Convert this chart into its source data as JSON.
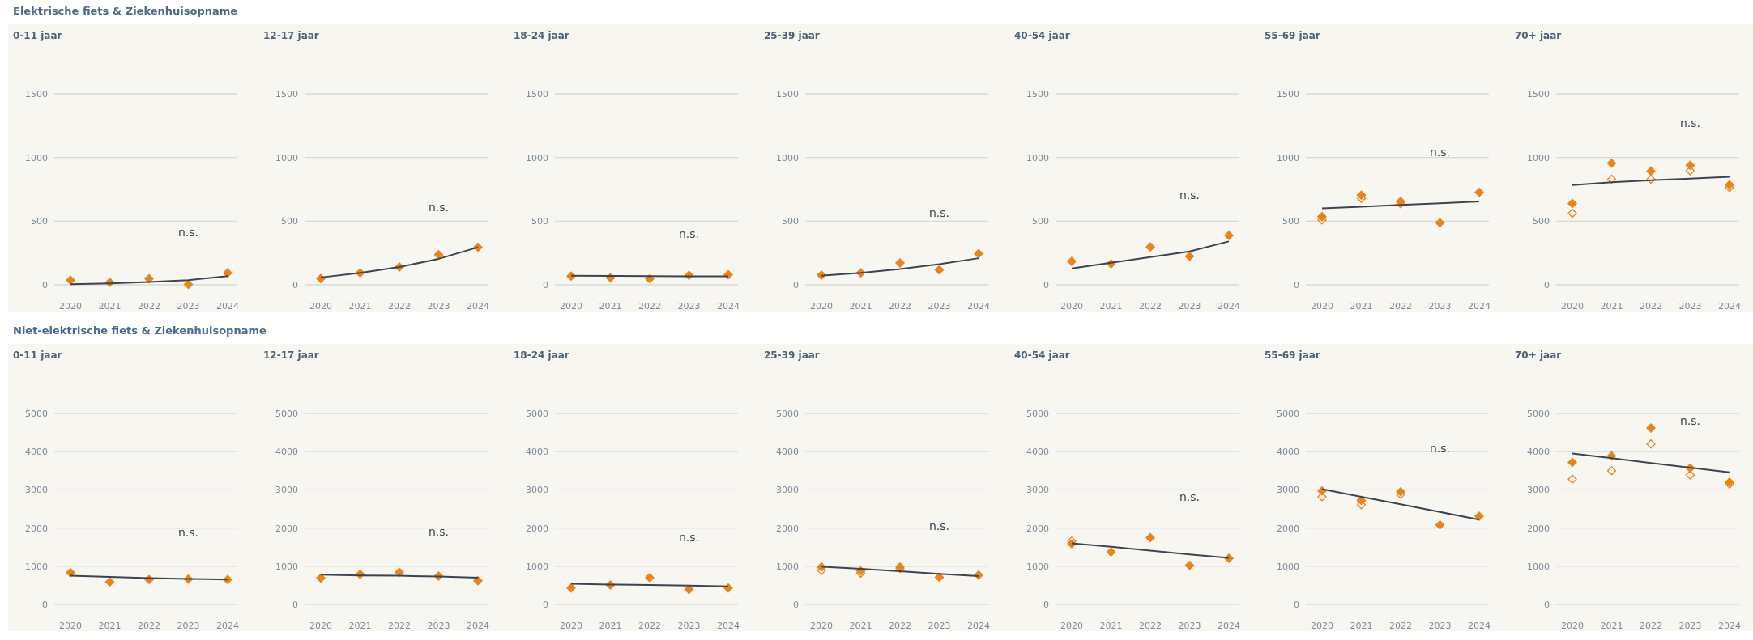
{
  "chart_data": [
    {
      "type": "scatter",
      "title": "0-11 jaar",
      "categories": [
        "2020",
        "2021",
        "2022",
        "2023",
        "2024"
      ],
      "ylim": [
        0,
        1500
      ],
      "yticks": [
        0,
        500,
        1000,
        1500
      ],
      "grid": "y",
      "series": [
        {
          "color": "#e8841a",
          "marker": "diamond",
          "values": [
            36,
            19,
            47,
            3,
            94
          ]
        },
        {
          "type": "line",
          "color": "#3d4451",
          "values": [
            5,
            11,
            22,
            36,
            69
          ]
        }
      ],
      "annotations": [
        "Elektrische fiets & Ziekenhuisopname",
        "n.s."
      ]
    },
    {
      "type": "scatter",
      "title": "12-17 jaar",
      "categories": [
        "2020",
        "2021",
        "2022",
        "2023",
        "2024"
      ],
      "ylim": [
        0,
        1500
      ],
      "yticks": [
        0,
        500,
        1000,
        1500
      ],
      "grid": "y",
      "series": [
        {
          "color": "#e8841a",
          "marker": "diamond",
          "values": [
            50,
            94,
            140,
            237,
            295
          ]
        },
        {
          "type": "line",
          "color": "#3d4451",
          "values": [
            58,
            94,
            140,
            204,
            295
          ]
        }
      ],
      "annotations": [
        "n.s."
      ]
    },
    {
      "type": "scatter",
      "title": "18-24 jaar",
      "categories": [
        "2020",
        "2021",
        "2022",
        "2023",
        "2024"
      ],
      "ylim": [
        0,
        1500
      ],
      "yticks": [
        0,
        500,
        1000,
        1500
      ],
      "grid": "y",
      "series": [
        {
          "color": "#e8841a",
          "marker": "diamond",
          "values": [
            69,
            55,
            47,
            74,
            80
          ]
        },
        {
          "type": "line",
          "color": "#3d4451",
          "values": [
            72,
            70,
            69,
            67,
            66
          ]
        }
      ],
      "annotations": [
        "n.s."
      ]
    },
    {
      "type": "scatter",
      "title": "25-39 jaar",
      "categories": [
        "2020",
        "2021",
        "2022",
        "2023",
        "2024"
      ],
      "ylim": [
        0,
        1500
      ],
      "yticks": [
        0,
        500,
        1000,
        1500
      ],
      "grid": "y",
      "series": [
        {
          "color": "#e8841a",
          "marker": "diamond",
          "values": [
            77,
            94,
            171,
            118,
            245
          ]
        },
        {
          "type": "line",
          "color": "#3d4451",
          "values": [
            72,
            94,
            124,
            162,
            209
          ]
        }
      ],
      "annotations": [
        "n.s."
      ]
    },
    {
      "type": "scatter",
      "title": "40-54 jaar",
      "categories": [
        "2020",
        "2021",
        "2022",
        "2023",
        "2024"
      ],
      "ylim": [
        0,
        1500
      ],
      "yticks": [
        0,
        500,
        1000,
        1500
      ],
      "grid": "y",
      "series": [
        {
          "color": "#e8841a",
          "marker": "diamond",
          "values": [
            184,
            165,
            297,
            224,
            387
          ]
        },
        {
          "type": "line",
          "color": "#3d4451",
          "values": [
            129,
            173,
            217,
            262,
            341
          ]
        }
      ],
      "annotations": [
        "n.s."
      ]
    },
    {
      "type": "scatter",
      "title": "55-69 jaar",
      "categories": [
        "2020",
        "2021",
        "2022",
        "2023",
        "2024"
      ],
      "ylim": [
        0,
        1500
      ],
      "yticks": [
        0,
        500,
        1000,
        1500
      ],
      "grid": "y",
      "series": [
        {
          "color": "#e8841a",
          "marker": "diamond",
          "values": [
            535,
            704,
            655,
            488,
            726
          ]
        },
        {
          "color": "#e8841a",
          "marker": "diamond",
          "values": [
            510,
            680,
            636,
            null,
            null
          ]
        },
        {
          "type": "line",
          "color": "#3d4451",
          "values": [
            600,
            614,
            627,
            641,
            655
          ]
        }
      ],
      "annotations": [
        "n.s."
      ]
    },
    {
      "type": "scatter",
      "title": "70+ jaar",
      "categories": [
        "2020",
        "2021",
        "2022",
        "2023",
        "2024"
      ],
      "ylim": [
        0,
        1500
      ],
      "yticks": [
        0,
        500,
        1000,
        1500
      ],
      "grid": "y",
      "series": [
        {
          "color": "#e8841a",
          "marker": "diamond",
          "values": [
            638,
            955,
            893,
            939,
            785
          ]
        },
        {
          "color": "#e8841a",
          "marker": "diamond",
          "values": [
            562,
            829,
            829,
            896,
            764
          ]
        },
        {
          "type": "line",
          "color": "#3d4451",
          "values": [
            783,
            805,
            821,
            835,
            848
          ]
        }
      ],
      "annotations": [
        "n.s."
      ]
    },
    {
      "type": "scatter",
      "title": "0-11 jaar",
      "categories": [
        "2020",
        "2021",
        "2022",
        "2023",
        "2024"
      ],
      "ylim": [
        0,
        5000
      ],
      "yticks": [
        0,
        1000,
        2000,
        3000,
        4000,
        5000
      ],
      "grid": "y",
      "series": [
        {
          "color": "#e8841a",
          "marker": "diamond",
          "values": [
            830,
            590,
            650,
            660,
            650
          ]
        },
        {
          "type": "line",
          "color": "#3d4451",
          "values": [
            750,
            720,
            690,
            670,
            650
          ]
        }
      ],
      "annotations": [
        "Niet-elektrische fiets & Ziekenhuisopname",
        "n.s."
      ]
    },
    {
      "type": "scatter",
      "title": "12-17 jaar",
      "categories": [
        "2020",
        "2021",
        "2022",
        "2023",
        "2024"
      ],
      "ylim": [
        0,
        5000
      ],
      "yticks": [
        0,
        1000,
        2000,
        3000,
        4000,
        5000
      ],
      "grid": "y",
      "series": [
        {
          "color": "#e8841a",
          "marker": "diamond",
          "values": [
            690,
            790,
            840,
            740,
            620
          ]
        },
        {
          "type": "line",
          "color": "#3d4451",
          "values": [
            780,
            760,
            750,
            730,
            700
          ]
        }
      ],
      "annotations": [
        "n.s."
      ]
    },
    {
      "type": "scatter",
      "title": "18-24 jaar",
      "categories": [
        "2020",
        "2021",
        "2022",
        "2023",
        "2024"
      ],
      "ylim": [
        0,
        5000
      ],
      "yticks": [
        0,
        1000,
        2000,
        3000,
        4000,
        5000
      ],
      "grid": "y",
      "series": [
        {
          "color": "#e8841a",
          "marker": "diamond",
          "values": [
            430,
            510,
            700,
            390,
            430
          ]
        },
        {
          "type": "line",
          "color": "#3d4451",
          "values": [
            540,
            520,
            510,
            490,
            470
          ]
        }
      ],
      "annotations": [
        "n.s."
      ]
    },
    {
      "type": "scatter",
      "title": "25-39 jaar",
      "categories": [
        "2020",
        "2021",
        "2022",
        "2023",
        "2024"
      ],
      "ylim": [
        0,
        5000
      ],
      "yticks": [
        0,
        1000,
        2000,
        3000,
        4000,
        5000
      ],
      "grid": "y",
      "series": [
        {
          "color": "#e8841a",
          "marker": "diamond",
          "values": [
            980,
            880,
            980,
            710,
            770
          ]
        },
        {
          "color": "#e8841a",
          "marker": "diamond",
          "values": [
            890,
            820,
            940,
            null,
            null
          ]
        },
        {
          "type": "line",
          "color": "#3d4451",
          "values": [
            990,
            930,
            870,
            800,
            740
          ]
        }
      ],
      "annotations": [
        "n.s."
      ]
    },
    {
      "type": "scatter",
      "title": "40-54 jaar",
      "categories": [
        "2020",
        "2021",
        "2022",
        "2023",
        "2024"
      ],
      "ylim": [
        0,
        5000
      ],
      "yticks": [
        0,
        1000,
        2000,
        3000,
        4000,
        5000
      ],
      "grid": "y",
      "series": [
        {
          "color": "#e8841a",
          "marker": "diamond",
          "values": [
            1590,
            1370,
            1750,
            1020,
            1210
          ]
        },
        {
          "color": "#e8841a",
          "marker": "diamond",
          "values": [
            1660,
            null,
            null,
            null,
            null
          ]
        },
        {
          "type": "line",
          "color": "#3d4451",
          "values": [
            1600,
            1510,
            1410,
            1310,
            1220
          ]
        }
      ],
      "annotations": [
        "n.s."
      ]
    },
    {
      "type": "scatter",
      "title": "55-69 jaar",
      "categories": [
        "2020",
        "2021",
        "2022",
        "2023",
        "2024"
      ],
      "ylim": [
        0,
        5000
      ],
      "yticks": [
        0,
        1000,
        2000,
        3000,
        4000,
        5000
      ],
      "grid": "y",
      "series": [
        {
          "color": "#e8841a",
          "marker": "diamond",
          "values": [
            2970,
            2720,
            2950,
            2080,
            2310
          ]
        },
        {
          "color": "#e8841a",
          "marker": "diamond",
          "values": [
            2820,
            2610,
            2880,
            null,
            null
          ]
        },
        {
          "type": "line",
          "color": "#3d4451",
          "values": [
            3020,
            2820,
            2620,
            2420,
            2220
          ]
        }
      ],
      "annotations": [
        "n.s."
      ]
    },
    {
      "type": "scatter",
      "title": "70+ jaar",
      "categories": [
        "2020",
        "2021",
        "2022",
        "2023",
        "2024"
      ],
      "ylim": [
        0,
        5000
      ],
      "yticks": [
        0,
        1000,
        2000,
        3000,
        4000,
        5000
      ],
      "grid": "y",
      "series": [
        {
          "color": "#e8841a",
          "marker": "diamond",
          "values": [
            3720,
            3890,
            4620,
            3570,
            3200
          ]
        },
        {
          "color": "#e8841a",
          "marker": "diamond",
          "values": [
            3280,
            3500,
            4200,
            3390,
            3150
          ]
        },
        {
          "type": "line",
          "color": "#3d4451",
          "values": [
            3950,
            3830,
            3700,
            3580,
            3460
          ]
        }
      ],
      "annotations": [
        "n.s."
      ]
    }
  ]
}
